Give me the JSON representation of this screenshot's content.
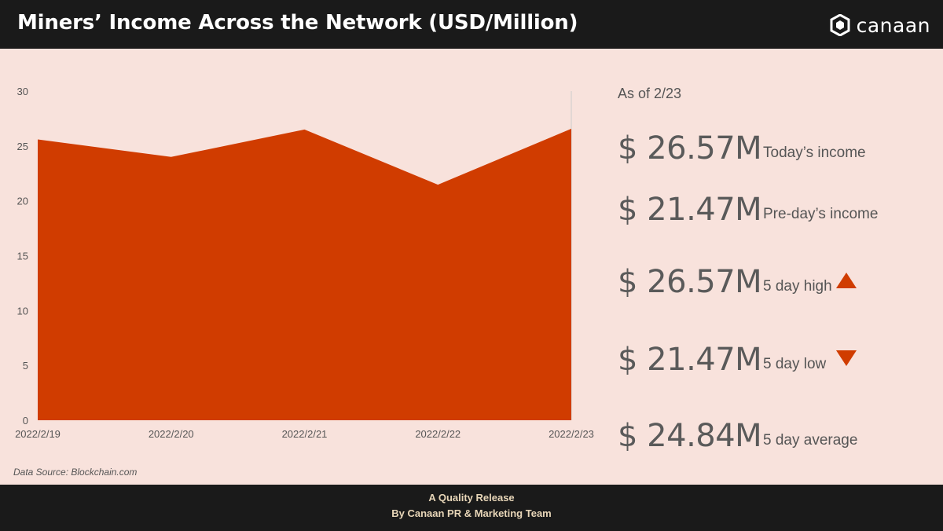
{
  "header": {
    "title": "Miners’ Income Across the Network (USD/Million)",
    "logo_text": "canaan"
  },
  "chart_data": {
    "type": "area",
    "title": "Miners’ Income Across the Network (USD/Million)",
    "x": [
      "2022/2/19",
      "2022/2/20",
      "2022/2/21",
      "2022/2/22",
      "2022/2/23"
    ],
    "series": [
      {
        "values": [
          25.6,
          24.0,
          26.5,
          21.47,
          26.57
        ]
      }
    ],
    "yticks": [
      0,
      5,
      10,
      15,
      20,
      25,
      30
    ],
    "ylim": [
      0,
      30
    ],
    "grid": false,
    "color": "#d03c00"
  },
  "stats": {
    "as_of": "As of 2/23",
    "today": {
      "value": "$ 26.57M",
      "label": "Today’s income"
    },
    "preday": {
      "value": "$ 21.47M",
      "label": "Pre-day’s income"
    },
    "high": {
      "value": "$ 26.57M",
      "label": "5 day high",
      "icon": "triangle-up-icon"
    },
    "low": {
      "value": "$ 21.47M",
      "label": "5 day low",
      "icon": "triangle-down-icon"
    },
    "average": {
      "value": "$ 24.84M",
      "label": "5 day average"
    }
  },
  "source": "Data Source: Blockchain.com",
  "footer": {
    "line1": "A Quality Release",
    "line2": "By Canaan PR & Marketing Team"
  },
  "colors": {
    "accent": "#d03c00",
    "background": "#f8e2dc",
    "header": "#1a1a1a",
    "footer_text": "#e8d6b8"
  }
}
